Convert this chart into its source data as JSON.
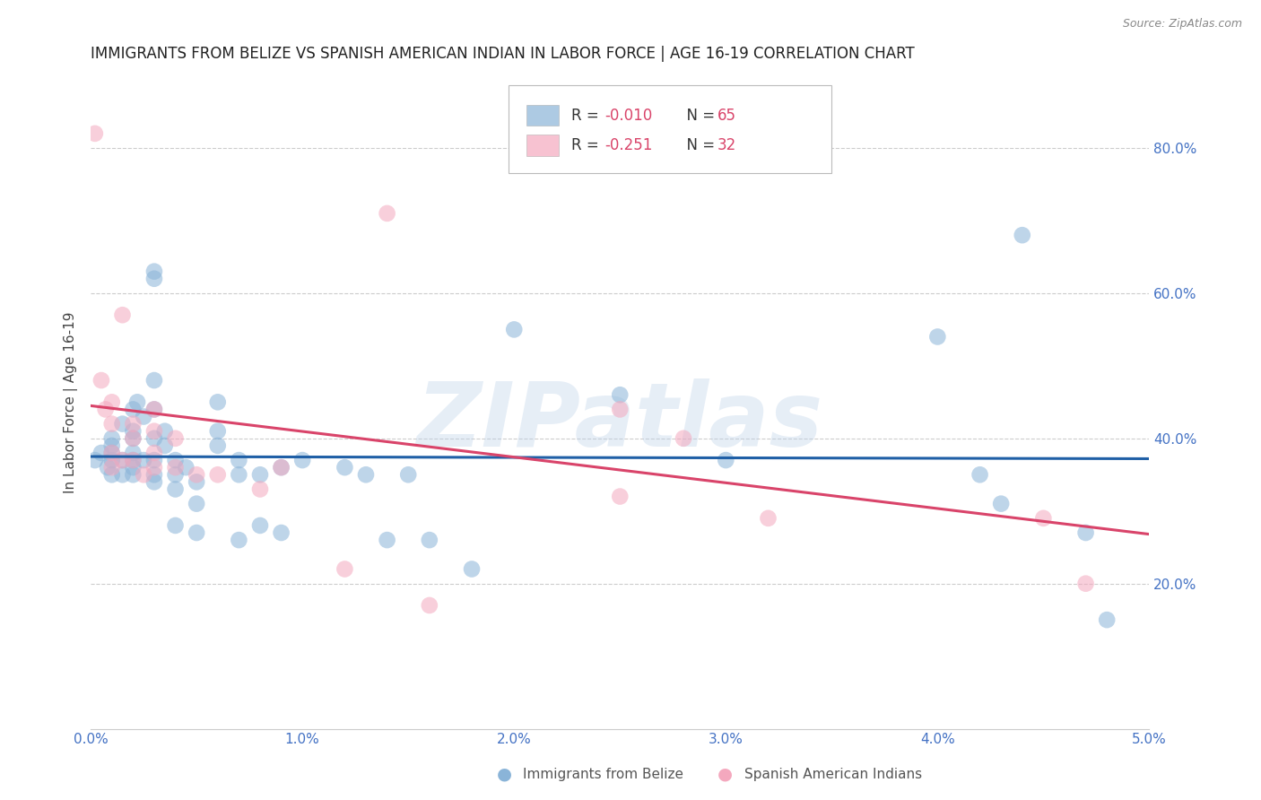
{
  "title": "IMMIGRANTS FROM BELIZE VS SPANISH AMERICAN INDIAN IN LABOR FORCE | AGE 16-19 CORRELATION CHART",
  "source": "Source: ZipAtlas.com",
  "ylabel": "In Labor Force | Age 16-19",
  "xlim": [
    0.0,
    0.05
  ],
  "ylim": [
    0.0,
    0.9
  ],
  "xticks": [
    0.0,
    0.01,
    0.02,
    0.03,
    0.04,
    0.05
  ],
  "xticklabels": [
    "0.0%",
    "1.0%",
    "2.0%",
    "3.0%",
    "4.0%",
    "5.0%"
  ],
  "yticks_right": [
    0.2,
    0.4,
    0.6,
    0.8
  ],
  "yticklabels_right": [
    "20.0%",
    "40.0%",
    "60.0%",
    "80.0%"
  ],
  "grid_color": "#cccccc",
  "background_color": "#ffffff",
  "blue_color": "#8ab4d8",
  "pink_color": "#f4a8be",
  "blue_line_color": "#1f5fa6",
  "pink_line_color": "#d9446a",
  "title_color": "#222222",
  "axis_label_color": "#444444",
  "tick_color": "#4472c4",
  "source_color": "#888888",
  "watermark": "ZIPatlas",
  "legend_r_blue": "-0.010",
  "legend_n_blue": "65",
  "legend_r_pink": "-0.251",
  "legend_n_pink": "32",
  "blue_line_y0": 0.375,
  "blue_line_y1": 0.372,
  "pink_line_y0": 0.445,
  "pink_line_y1": 0.268,
  "blue_scatter_x": [
    0.0002,
    0.0005,
    0.0008,
    0.001,
    0.001,
    0.001,
    0.001,
    0.001,
    0.0015,
    0.0015,
    0.0015,
    0.002,
    0.002,
    0.002,
    0.002,
    0.002,
    0.002,
    0.002,
    0.0022,
    0.0025,
    0.0025,
    0.003,
    0.003,
    0.003,
    0.003,
    0.003,
    0.003,
    0.003,
    0.003,
    0.0035,
    0.0035,
    0.004,
    0.004,
    0.004,
    0.004,
    0.0045,
    0.005,
    0.005,
    0.005,
    0.006,
    0.006,
    0.006,
    0.007,
    0.007,
    0.007,
    0.008,
    0.008,
    0.009,
    0.009,
    0.01,
    0.012,
    0.013,
    0.014,
    0.015,
    0.016,
    0.018,
    0.02,
    0.025,
    0.03,
    0.04,
    0.042,
    0.043,
    0.044,
    0.047,
    0.048
  ],
  "blue_scatter_y": [
    0.37,
    0.38,
    0.36,
    0.35,
    0.37,
    0.39,
    0.38,
    0.4,
    0.42,
    0.37,
    0.35,
    0.44,
    0.38,
    0.41,
    0.36,
    0.35,
    0.4,
    0.37,
    0.45,
    0.43,
    0.37,
    0.62,
    0.63,
    0.48,
    0.44,
    0.4,
    0.37,
    0.35,
    0.34,
    0.41,
    0.39,
    0.37,
    0.35,
    0.33,
    0.28,
    0.36,
    0.34,
    0.31,
    0.27,
    0.45,
    0.41,
    0.39,
    0.37,
    0.35,
    0.26,
    0.35,
    0.28,
    0.36,
    0.27,
    0.37,
    0.36,
    0.35,
    0.26,
    0.35,
    0.26,
    0.22,
    0.55,
    0.46,
    0.37,
    0.54,
    0.35,
    0.31,
    0.68,
    0.27,
    0.15
  ],
  "pink_scatter_x": [
    0.0002,
    0.0005,
    0.0007,
    0.001,
    0.001,
    0.001,
    0.001,
    0.0015,
    0.0015,
    0.002,
    0.002,
    0.002,
    0.0025,
    0.003,
    0.003,
    0.003,
    0.003,
    0.004,
    0.004,
    0.005,
    0.006,
    0.008,
    0.009,
    0.012,
    0.014,
    0.016,
    0.025,
    0.025,
    0.028,
    0.032,
    0.045,
    0.047
  ],
  "pink_scatter_y": [
    0.82,
    0.48,
    0.44,
    0.42,
    0.45,
    0.38,
    0.36,
    0.57,
    0.37,
    0.42,
    0.4,
    0.37,
    0.35,
    0.44,
    0.41,
    0.38,
    0.36,
    0.4,
    0.36,
    0.35,
    0.35,
    0.33,
    0.36,
    0.22,
    0.71,
    0.17,
    0.44,
    0.32,
    0.4,
    0.29,
    0.29,
    0.2
  ]
}
